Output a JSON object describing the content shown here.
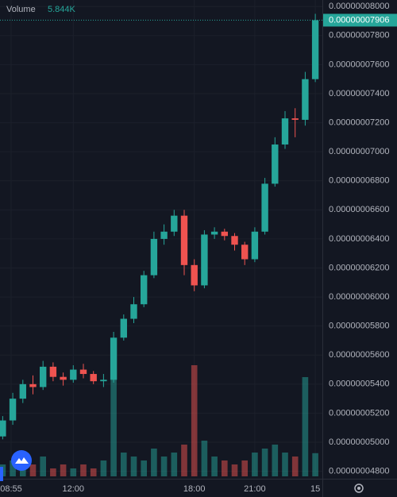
{
  "chart_data": {
    "type": "candlestick",
    "x": [
      "08:30",
      "09:00",
      "09:30",
      "10:00",
      "10:30",
      "11:00",
      "11:30",
      "12:00",
      "12:30",
      "13:00",
      "13:30",
      "14:00",
      "14:30",
      "15:00",
      "15:30",
      "16:00",
      "16:30",
      "17:00",
      "17:30",
      "18:00",
      "18:30",
      "19:00",
      "19:30",
      "20:00",
      "20:30",
      "21:00",
      "21:30",
      "22:00",
      "22:30",
      "23:00",
      "23:30",
      "00:00"
    ],
    "open": [
      5.04e-08,
      5.15e-08,
      5.3e-08,
      5.4e-08,
      5.38e-08,
      5.52e-08,
      5.45e-08,
      5.43e-08,
      5.5e-08,
      5.47e-08,
      5.42e-08,
      5.43e-08,
      5.72e-08,
      5.85e-08,
      5.95e-08,
      6.15e-08,
      6.4e-08,
      6.45e-08,
      6.56e-08,
      6.22e-08,
      6.08e-08,
      6.43e-08,
      6.45e-08,
      6.42e-08,
      6.36e-08,
      6.26e-08,
      6.45e-08,
      6.78e-08,
      7.05e-08,
      7.23e-08,
      7.22e-08,
      7.5e-08
    ],
    "high": [
      5.18e-08,
      5.34e-08,
      5.43e-08,
      5.46e-08,
      5.56e-08,
      5.55e-08,
      5.48e-08,
      5.53e-08,
      5.54e-08,
      5.49e-08,
      5.47e-08,
      5.76e-08,
      5.88e-08,
      6e-08,
      6.18e-08,
      6.45e-08,
      6.5e-08,
      6.6e-08,
      6.6e-08,
      6.26e-08,
      6.46e-08,
      6.48e-08,
      6.47e-08,
      6.44e-08,
      6.38e-08,
      6.48e-08,
      6.82e-08,
      7.1e-08,
      7.28e-08,
      7.3e-08,
      7.55e-08,
      7.95e-08
    ],
    "low": [
      5.02e-08,
      5.12e-08,
      5.27e-08,
      5.33e-08,
      5.36e-08,
      5.42e-08,
      5.39e-08,
      5.41e-08,
      5.44e-08,
      5.4e-08,
      5.38e-08,
      5.41e-08,
      5.7e-08,
      5.82e-08,
      5.93e-08,
      6.13e-08,
      6.36e-08,
      6.42e-08,
      6.15e-08,
      6.04e-08,
      6.06e-08,
      6.4e-08,
      6.39e-08,
      6.32e-08,
      6.22e-08,
      6.24e-08,
      6.43e-08,
      6.76e-08,
      7.02e-08,
      7.1e-08,
      7.18e-08,
      7.48e-08
    ],
    "close": [
      5.15e-08,
      5.3e-08,
      5.4e-08,
      5.38e-08,
      5.52e-08,
      5.45e-08,
      5.43e-08,
      5.5e-08,
      5.47e-08,
      5.42e-08,
      5.43e-08,
      5.72e-08,
      5.85e-08,
      5.95e-08,
      6.15e-08,
      6.4e-08,
      6.45e-08,
      6.56e-08,
      6.22e-08,
      6.08e-08,
      6.43e-08,
      6.45e-08,
      6.42e-08,
      6.36e-08,
      6.26e-08,
      6.45e-08,
      6.78e-08,
      7.05e-08,
      7.23e-08,
      7.22e-08,
      7.5e-08,
      7.906e-08
    ],
    "up_color": "#26a69a",
    "down_color": "#ef5350",
    "volume": {
      "name": "Volume",
      "last_label": "5.844K",
      "values": [
        3,
        4,
        2,
        3,
        5,
        2,
        3,
        2,
        3,
        2,
        4,
        30,
        6,
        5,
        4,
        7,
        5,
        6,
        8,
        28,
        9,
        5,
        4,
        3,
        4,
        6,
        7,
        8,
        6,
        5,
        25,
        5.844
      ],
      "ylim": [
        0,
        40
      ]
    },
    "last_price": {
      "value": 7.906e-08,
      "label": "0.00000007906"
    },
    "xlim": [
      "08:22",
      "00:21"
    ],
    "xticks": [
      {
        "value": "08:55",
        "label": "08:55"
      },
      "12:00",
      "18:00",
      "21:00",
      {
        "value": "00:00",
        "label": "15"
      }
    ],
    "ylim": [
      4.765e-08,
      8.045e-08
    ],
    "yticks": [
      {
        "value": 4.8e-08,
        "label": "0.00000004800"
      },
      {
        "value": 5e-08,
        "label": "0.00000005000"
      },
      {
        "value": 5.2e-08,
        "label": "0.00000005200"
      },
      {
        "value": 5.4e-08,
        "label": "0.00000005400"
      },
      {
        "value": 5.6e-08,
        "label": "0.00000005600"
      },
      {
        "value": 5.8e-08,
        "label": "0.00000005800"
      },
      {
        "value": 6e-08,
        "label": "0.00000006000"
      },
      {
        "value": 6.2e-08,
        "label": "0.00000006200"
      },
      {
        "value": 6.4e-08,
        "label": "0.00000006400"
      },
      {
        "value": 6.6e-08,
        "label": "0.00000006600"
      },
      {
        "value": 6.8e-08,
        "label": "0.00000006800"
      },
      {
        "value": 7e-08,
        "label": "0.00000007000"
      },
      {
        "value": 7.2e-08,
        "label": "0.00000007200"
      },
      {
        "value": 7.4e-08,
        "label": "0.00000007400"
      },
      {
        "value": 7.6e-08,
        "label": "0.00000007600"
      },
      {
        "value": 7.8e-08,
        "label": "0.00000007800"
      },
      {
        "value": 8e-08,
        "label": "0.00000008000"
      }
    ],
    "grid": true
  }
}
